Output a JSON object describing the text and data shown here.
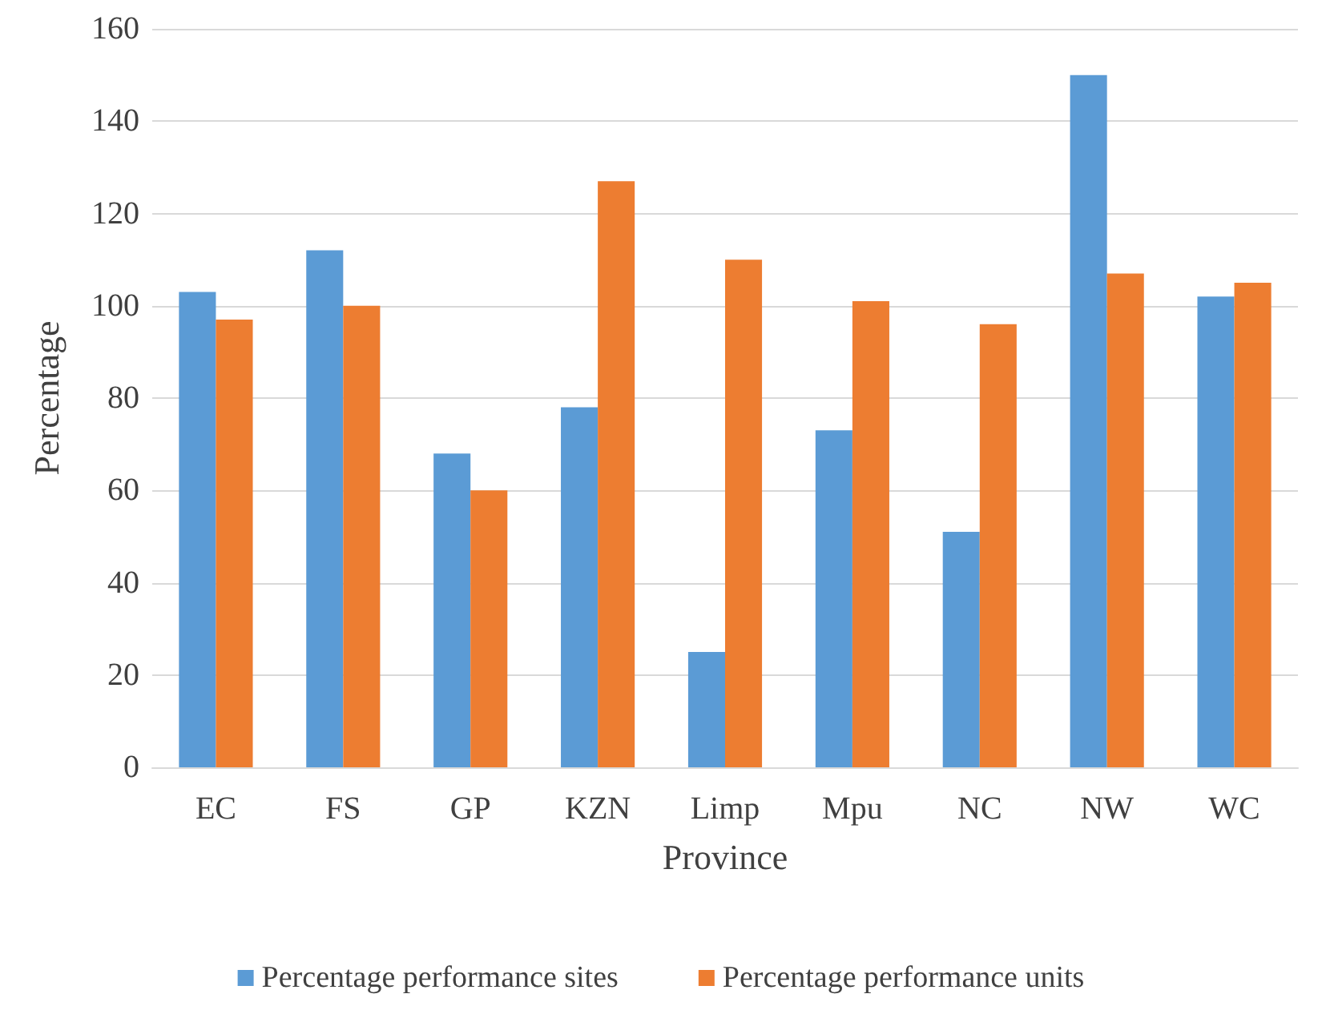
{
  "chart_data": {
    "type": "bar",
    "xlabel": "Province",
    "ylabel": "Percentage",
    "categories": [
      "EC",
      "FS",
      "GP",
      "KZN",
      "Limp",
      "Mpu",
      "NC",
      "NW",
      "WC"
    ],
    "series": [
      {
        "name": "Percentage performance sites",
        "color": "#5b9bd5",
        "values": [
          103,
          112,
          68,
          78,
          25,
          73,
          51,
          150,
          102
        ]
      },
      {
        "name": "Percentage performance units",
        "color": "#ed7d31",
        "values": [
          97,
          100,
          60,
          127,
          110,
          101,
          96,
          107,
          105
        ]
      }
    ],
    "ylim": [
      0,
      160
    ],
    "yticks": [
      0,
      20,
      40,
      60,
      80,
      100,
      120,
      140,
      160
    ],
    "grid": "y",
    "legend": "bottom"
  }
}
